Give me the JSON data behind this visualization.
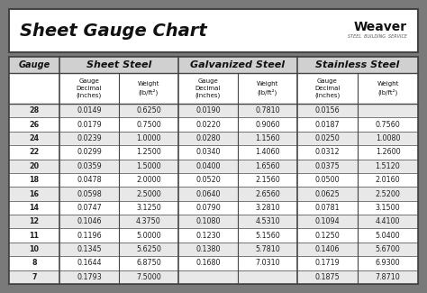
{
  "title": "Sheet Gauge Chart",
  "gauges": [
    28,
    26,
    24,
    22,
    20,
    18,
    16,
    14,
    12,
    11,
    10,
    8,
    7
  ],
  "sheet_steel": {
    "label": "Sheet Steel",
    "decimal": [
      "0.0149",
      "0.0179",
      "0.0239",
      "0.0299",
      "0.0359",
      "0.0478",
      "0.0598",
      "0.0747",
      "0.1046",
      "0.1196",
      "0.1345",
      "0.1644",
      "0.1793"
    ],
    "weight": [
      "0.6250",
      "0.7500",
      "1.0000",
      "1.2500",
      "1.5000",
      "2.0000",
      "2.5000",
      "3.1250",
      "4.3750",
      "5.0000",
      "5.6250",
      "6.8750",
      "7.5000"
    ]
  },
  "galvanized_steel": {
    "label": "Galvanized Steel",
    "decimal": [
      "0.0190",
      "0.0220",
      "0.0280",
      "0.0340",
      "0.0400",
      "0.0520",
      "0.0640",
      "0.0790",
      "0.1080",
      "0.1230",
      "0.1380",
      "0.1680",
      ""
    ],
    "weight": [
      "0.7810",
      "0.9060",
      "1.1560",
      "1.4060",
      "1.6560",
      "2.1560",
      "2.6560",
      "3.2810",
      "4.5310",
      "5.1560",
      "5.7810",
      "7.0310",
      ""
    ]
  },
  "stainless_steel": {
    "label": "Stainless Steel",
    "decimal": [
      "0.0156",
      "0.0187",
      "0.0250",
      "0.0312",
      "0.0375",
      "0.0500",
      "0.0625",
      "0.0781",
      "0.1094",
      "0.1250",
      "0.1406",
      "0.1719",
      "0.1875"
    ],
    "weight": [
      "",
      "0.7560",
      "1.0080",
      "1.2600",
      "1.5120",
      "2.0160",
      "2.5200",
      "3.1500",
      "4.4100",
      "5.0400",
      "5.6700",
      "6.9300",
      "7.8710"
    ]
  },
  "bg_outer": "#7a7a7a",
  "bg_title": "#ffffff",
  "bg_table": "#ffffff",
  "header_bg": "#d0d0d0",
  "subheader_bg": "#ffffff",
  "row_odd": "#e8e8e8",
  "row_even": "#ffffff",
  "border_color": "#444444",
  "title_color": "#111111",
  "header_text_color": "#111111",
  "cell_text_color": "#222222",
  "gap_color": "#7a7a7a"
}
